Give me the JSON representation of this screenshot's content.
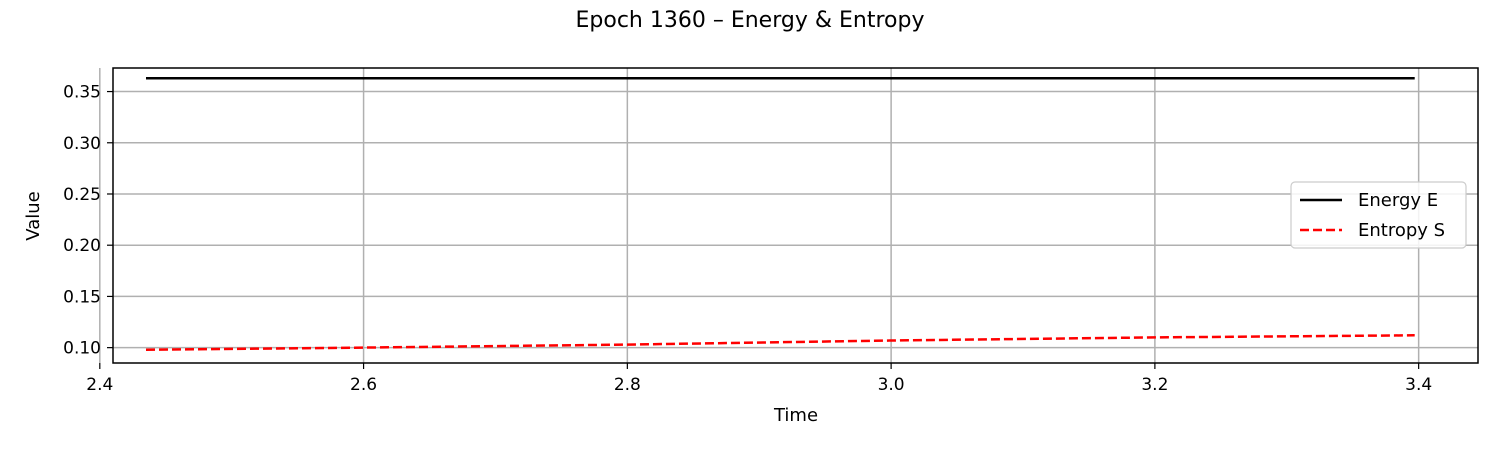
{
  "chart_data": {
    "type": "line",
    "title": "Epoch 1360 – Energy & Entropy",
    "xlabel": "Time",
    "ylabel": "Value",
    "xlim": [
      2.41,
      3.445
    ],
    "ylim": [
      0.085,
      0.373
    ],
    "xticks": [
      2.4,
      2.6,
      2.8,
      3.0,
      3.2,
      3.4
    ],
    "xtick_labels": [
      "2.4",
      "2.6",
      "2.8",
      "3.0",
      "3.2",
      "3.4"
    ],
    "yticks": [
      0.1,
      0.15,
      0.2,
      0.25,
      0.3,
      0.35
    ],
    "ytick_labels": [
      "0.10",
      "0.15",
      "0.20",
      "0.25",
      "0.30",
      "0.35"
    ],
    "grid": true,
    "legend_position": "center-right",
    "series": [
      {
        "name": "Energy E",
        "color": "#000000",
        "style": "solid",
        "x": [
          2.435,
          2.6,
          2.8,
          3.0,
          3.2,
          3.397
        ],
        "y": [
          0.363,
          0.363,
          0.363,
          0.363,
          0.363,
          0.363
        ]
      },
      {
        "name": "Entropy S",
        "color": "#ff0000",
        "style": "dashed",
        "x": [
          2.435,
          2.6,
          2.8,
          3.0,
          3.2,
          3.397
        ],
        "y": [
          0.098,
          0.1,
          0.103,
          0.107,
          0.11,
          0.112
        ]
      }
    ]
  }
}
